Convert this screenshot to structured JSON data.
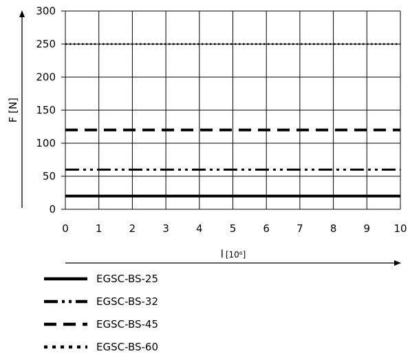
{
  "chart_data": {
    "type": "line",
    "xlabel": "l",
    "xlabel_unit": "[10⁶]",
    "ylabel": "F [N]",
    "xlim": [
      0,
      10
    ],
    "ylim": [
      0,
      300
    ],
    "x_ticks": [
      "0",
      "1",
      "2",
      "3",
      "4",
      "5",
      "6",
      "7",
      "8",
      "9",
      "10"
    ],
    "y_ticks": [
      "0",
      "50",
      "100",
      "150",
      "200",
      "250",
      "300"
    ],
    "grid": true,
    "legend_position": "bottom-left",
    "series": [
      {
        "name": "EGSC-BS-25",
        "style": "solid",
        "x": [
          0,
          10
        ],
        "y": [
          20,
          20
        ]
      },
      {
        "name": "EGSC-BS-32",
        "style": "dash-dot-dot",
        "x": [
          0,
          10
        ],
        "y": [
          60,
          60
        ]
      },
      {
        "name": "EGSC-BS-45",
        "style": "dashed",
        "x": [
          0,
          10
        ],
        "y": [
          120,
          120
        ]
      },
      {
        "name": "EGSC-BS-60",
        "style": "dotted",
        "x": [
          0,
          10
        ],
        "y": [
          250,
          250
        ]
      }
    ],
    "colors": {
      "line": "#000000",
      "grid": "#000000"
    }
  }
}
